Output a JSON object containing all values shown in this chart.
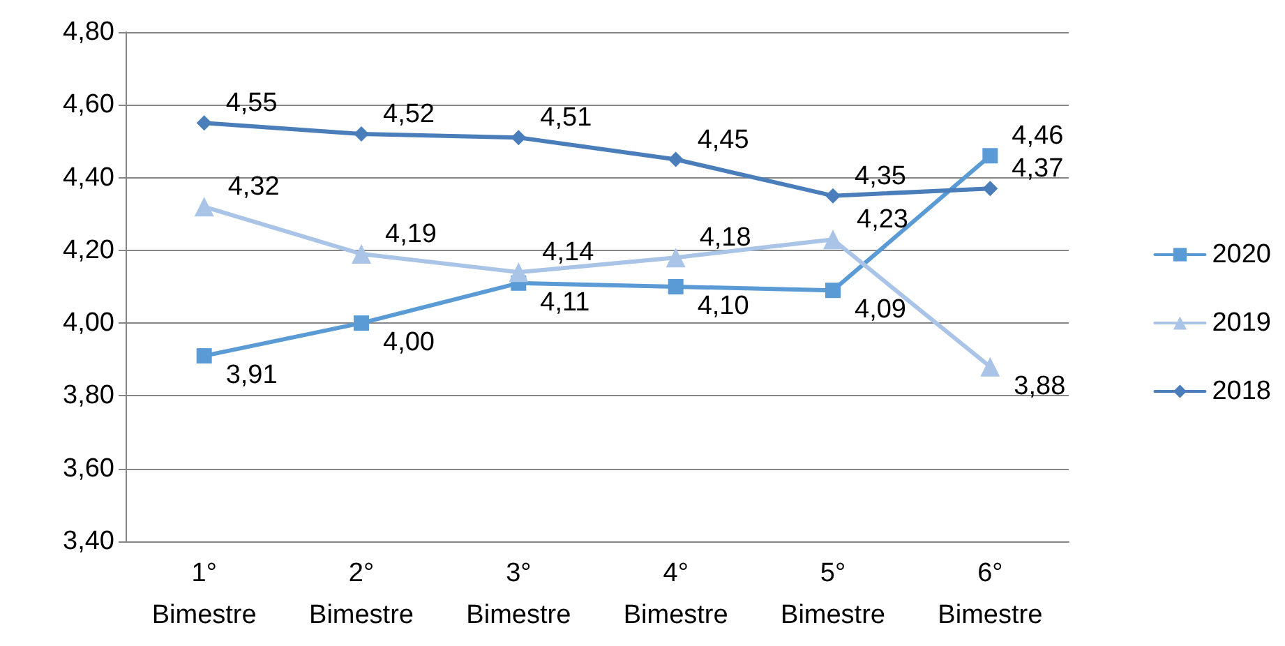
{
  "chart_data": {
    "type": "line",
    "categories": [
      "1°\nBimestre",
      "2°\nBimestre",
      "3°\nBimestre",
      "4°\nBimestre",
      "5°\nBimestre",
      "6°\nBimestre"
    ],
    "series": [
      {
        "name": "2020",
        "color": "#5b9bd5",
        "marker": "square",
        "values": [
          3.91,
          4.0,
          4.11,
          4.1,
          4.09,
          4.46
        ],
        "value_labels": [
          "3,91",
          "4,00",
          "4,11",
          "4,10",
          "4,09",
          "4,46"
        ]
      },
      {
        "name": "2019",
        "color": "#a9c4e6",
        "marker": "triangle",
        "values": [
          4.32,
          4.19,
          4.14,
          4.18,
          4.23,
          3.88
        ],
        "value_labels": [
          "4,32",
          "4,19",
          "4,14",
          "4,18",
          "4,23",
          "3,88"
        ]
      },
      {
        "name": "2018",
        "color": "#4a7ebb",
        "marker": "diamond",
        "values": [
          4.55,
          4.52,
          4.51,
          4.45,
          4.35,
          4.37
        ],
        "value_labels": [
          "4,55",
          "4,52",
          "4,51",
          "4,45",
          "4,35",
          "4,37"
        ]
      }
    ],
    "ylim": [
      3.4,
      4.8
    ],
    "yticks": [
      {
        "value": 3.4,
        "label": "3,40"
      },
      {
        "value": 3.6,
        "label": "3,60"
      },
      {
        "value": 3.8,
        "label": "3,80"
      },
      {
        "value": 4.0,
        "label": "4,00"
      },
      {
        "value": 4.2,
        "label": "4,20"
      },
      {
        "value": 4.4,
        "label": "4,40"
      },
      {
        "value": 4.6,
        "label": "4,60"
      },
      {
        "value": 4.8,
        "label": "4,80"
      }
    ],
    "grid": "y",
    "legend": "right",
    "line_style": "solid"
  }
}
